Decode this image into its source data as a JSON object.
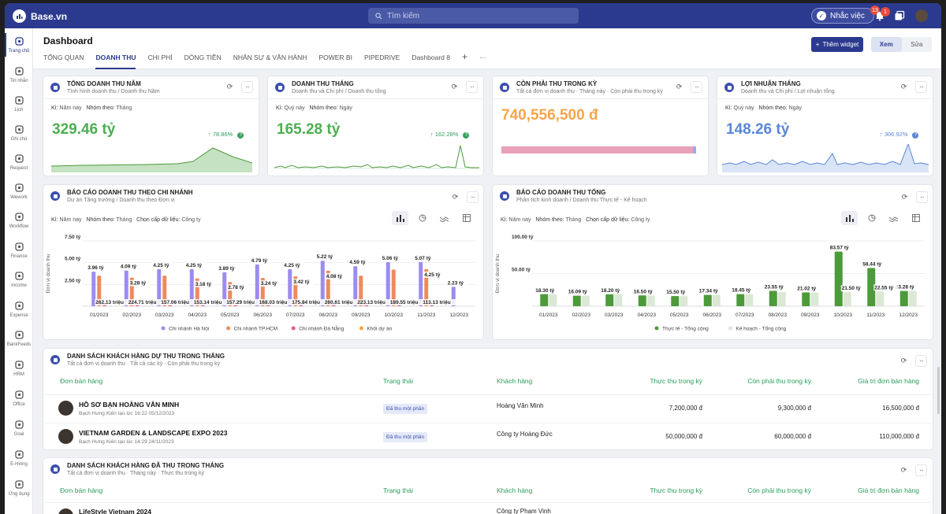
{
  "app": {
    "name": "Base.vn"
  },
  "topbar": {
    "search_placeholder": "Tìm kiếm",
    "remind_label": "Nhắc việc",
    "remind_badge": "13",
    "notif_badge": "1"
  },
  "sidebar": {
    "items": [
      {
        "label": "Trang chủ",
        "icon": "home-icon"
      },
      {
        "label": "Tin nhắn",
        "icon": "chat-icon"
      },
      {
        "label": "Lịch",
        "icon": "calendar-icon"
      },
      {
        "label": "Ghi chú",
        "icon": "note-icon"
      },
      {
        "label": "Request",
        "icon": "request-icon"
      },
      {
        "label": "Wework",
        "icon": "wework-icon"
      },
      {
        "label": "Workflow",
        "icon": "workflow-icon"
      },
      {
        "label": "Finance",
        "icon": "finance-icon"
      },
      {
        "label": "Income",
        "icon": "income-icon"
      },
      {
        "label": "Expense",
        "icon": "expense-icon"
      },
      {
        "label": "BankFeeds",
        "icon": "bankfeeds-icon"
      },
      {
        "label": "HRM",
        "icon": "hrm-icon"
      },
      {
        "label": "Office",
        "icon": "office-icon"
      },
      {
        "label": "Goal",
        "icon": "goal-icon"
      },
      {
        "label": "E-Hiring",
        "icon": "ehiring-icon"
      },
      {
        "label": "Ứng dụng",
        "icon": "apps-icon"
      }
    ]
  },
  "header": {
    "title": "Dashboard",
    "tabs": [
      "TỔNG QUAN",
      "DOANH THU",
      "CHI PHÍ",
      "DÒNG TIỀN",
      "NHÂN SỰ & VẬN HÀNH",
      "POWER BI",
      "PIPEDRIVE",
      "Dashboard 8"
    ],
    "add_tab": "+",
    "more": "···",
    "add_widget": "Thêm widget",
    "view_label": "Xem",
    "edit_label": "Sửa"
  },
  "kpis": [
    {
      "title": "TỔNG DOANH THU NĂM",
      "subtitle": "Tình hình doanh thu / Doanh thu Năm",
      "period_label": "Kì:",
      "period": "Năm nay",
      "group_label": "Nhóm theo:",
      "group": "Tháng",
      "value": "329.46 tỷ",
      "growth": "78.86%",
      "color": "#4caf50"
    },
    {
      "title": "DOANH THU THÁNG",
      "subtitle": "Doanh thu và Chi phí / Doanh thu tổng",
      "period_label": "Kì:",
      "period": "Quý này",
      "group_label": "Nhóm theo:",
      "group": "Ngày",
      "value": "165.28 tỷ",
      "growth": "162.28%",
      "color": "#4caf50"
    },
    {
      "title": "CÒN PHẢI THU TRONG KỲ",
      "subtitle": "Tất cả đơn vị doanh thu · Tháng này · Còn phải thu trong kỳ",
      "value": "740,556,500 đ",
      "progress": 0.985,
      "color": "#f5a54a"
    },
    {
      "title": "LỢI NHUẬN THÁNG",
      "subtitle": "Doanh thu và Chi phí / Lợi nhuận tổng",
      "period_label": "Kì:",
      "period": "Quý này",
      "group_label": "Nhóm theo:",
      "group": "Ngày",
      "value": "148.26 tỷ",
      "growth": "306.92%",
      "color": "#5a86d6"
    }
  ],
  "branch_report": {
    "title": "BÁO CÁO DOANH THU THEO CHI NHÁNH",
    "subtitle": "Dự án Tăng trưởng / Doanh thu theo Đơn vị",
    "period_label": "Kì:",
    "period": "Năm nay",
    "group_label": "Nhóm theo:",
    "group": "Tháng",
    "level_label": "Chọn cấp dữ liệu:",
    "level": "Công ty"
  },
  "total_report": {
    "title": "BÁO CÁO DOANH THU TỔNG",
    "subtitle": "Phân tích kinh doanh / Doanh thu Thực tế - Kế hoạch",
    "period_label": "Kì:",
    "period": "Năm nay",
    "group_label": "Nhóm theo:",
    "group": "Tháng",
    "level_label": "Chọn cấp dữ liệu:",
    "level": "Công ty"
  },
  "chart_data": [
    {
      "type": "bar",
      "ylabel": "Đơn vị doanh thu",
      "ylim": [
        0,
        7.5
      ],
      "yticks": [
        "7.50 tỷ",
        "5.00 tỷ",
        "2.50 tỷ"
      ],
      "ytick_values": [
        7.5,
        5.0,
        2.5
      ],
      "categories": [
        "01/2023",
        "02/2023",
        "03/2023",
        "04/2023",
        "05/2023",
        "06/2023",
        "07/2023",
        "08/2023",
        "09/2023",
        "10/2023",
        "11/2023",
        "12/2023"
      ],
      "series": [
        {
          "name": "Chi nhánh Hà Nội",
          "color": "#9b8cf0",
          "values": [
            3.96,
            4.09,
            4.25,
            4.25,
            3.89,
            4.79,
            4.25,
            5.22,
            4.59,
            5.06,
            5.07,
            2.23
          ],
          "labels": [
            "3.96 tỷ",
            "4.09 tỷ",
            "4.25 tỷ",
            "4.25 tỷ",
            "3.89 tỷ",
            "4.79 tỷ",
            "4.25 tỷ",
            "5.22 tỷ",
            "4.59 tỷ",
            "5.06 tỷ",
            "5.07 tỷ",
            "2.23 tỷ"
          ]
        },
        {
          "name": "Chi nhánh TP.HCM",
          "color": "#ef8a5c",
          "values": [
            3.5,
            3.28,
            3.5,
            3.18,
            2.78,
            3.24,
            3.42,
            4.08,
            3.5,
            4.2,
            4.25,
            0
          ],
          "labels": [
            "",
            "3.28 tỷ",
            "",
            "3.18 tỷ",
            "2.78 tỷ",
            "3.24 tỷ",
            "3.42 tỷ",
            "4.08 tỷ",
            "",
            "",
            "4.25 tỷ",
            ""
          ]
        },
        {
          "name": "Chi nhánh Đà Nẵng",
          "color": "#e0607e",
          "values": [
            0.26,
            0.22,
            0.16,
            0.15,
            0.16,
            0.17,
            0.18,
            0.26,
            0.22,
            0.19,
            0.11,
            0
          ],
          "labels": [
            "262.13 triệu",
            "224.71 triệu",
            "157.06 triệu",
            "153.14 triệu",
            "157.29 triệu",
            "168.03 triệu",
            "175.84 triệu",
            "260.61 triệu",
            "223.13 triệu",
            "189.55 triệu",
            "113.13 triệu",
            ""
          ]
        },
        {
          "name": "Khối dự án",
          "color": "#f0a640",
          "values": [
            0,
            0,
            0,
            0,
            0,
            0,
            0,
            0,
            0,
            0,
            0,
            0
          ]
        }
      ]
    },
    {
      "type": "bar",
      "ylabel": "Đơn vị doanh thu",
      "ylim": [
        0,
        100
      ],
      "yticks": [
        "100.00 tỷ",
        "50.00 tỷ"
      ],
      "ytick_values": [
        100,
        50
      ],
      "categories": [
        "01/2023",
        "02/2023",
        "03/2023",
        "04/2023",
        "05/2023",
        "06/2023",
        "07/2023",
        "08/2023",
        "09/2023",
        "10/2023",
        "11/2023",
        "12/2023"
      ],
      "series": [
        {
          "name": "Thực tế - Tổng cộng",
          "color": "#4c9a3a",
          "values": [
            18.3,
            16.09,
            18.2,
            16.5,
            15.5,
            17.34,
            18.45,
            23.55,
            21.02,
            83.57,
            58.44,
            23.28
          ],
          "labels": [
            "18.30 tỷ",
            "16.09 tỷ",
            "18.20 tỷ",
            "16.50 tỷ",
            "15.50 tỷ",
            "17.34 tỷ",
            "18.45 tỷ",
            "23.55 tỷ",
            "21.02 tỷ",
            "83.57 tỷ",
            "58.44 tỷ",
            "23.28 tỷ"
          ]
        },
        {
          "name": "Kế hoạch - Tổng cộng",
          "color": "#dbe8d5",
          "values": [
            18.3,
            16.09,
            18.2,
            16.5,
            15.5,
            17.34,
            18.45,
            21.5,
            21.02,
            21.5,
            22.55,
            23.28
          ],
          "labels": [
            "",
            "",
            "",
            "",
            "",
            "",
            "",
            "",
            "",
            "21.50 tỷ",
            "22.55 tỷ",
            ""
          ]
        }
      ]
    }
  ],
  "due_list": {
    "title": "DANH SÁCH KHÁCH HÀNG DỰ THU TRONG THÁNG",
    "subtitle": "Tất cả đơn vị doanh thu · Tất cả các kỳ · Còn phải thu trong kỳ",
    "columns": [
      "Đơn bán hàng",
      "Trạng thái",
      "Khách hàng",
      "Thực thu trong kỳ",
      "Còn phải thu trong kỳ",
      "Giá trị đơn bán hàng"
    ],
    "rows": [
      {
        "name": "HỒ SƠ BẠN HOÀNG VĂN MINH",
        "meta": "Bạch Hưng Kiên tạo lúc 16:22 05/12/2023",
        "status": "Đã thu một phần",
        "customer": "Hoàng Văn Minh",
        "collected": "7,200,000 đ",
        "remaining": "9,300,000 đ",
        "value": "16,500,000 đ"
      },
      {
        "name": "VIETNAM GARDEN & LANDSCAPE EXPO 2023",
        "meta": "Bạch Hưng Kiên tạo lúc 14:29 24/11/2023",
        "status": "Đã thu một phần",
        "customer": "Công ty Hoàng Đức",
        "collected": "50,000,000 đ",
        "remaining": "60,000,000 đ",
        "value": "110,000,000 đ"
      }
    ]
  },
  "paid_list": {
    "title": "DANH SÁCH KHÁCH HÀNG ĐÃ THU TRONG THÁNG",
    "subtitle": "Tất cả đơn vị doanh thu · Tháng này · Thực thu trong kỳ",
    "columns": [
      "Đơn bán hàng",
      "Trạng thái",
      "Khách hàng",
      "Thực thu trong kỳ",
      "Còn phải thu trong kỳ",
      "Giá trị đơn bán hàng"
    ],
    "rows": [
      {
        "name": "LifeStyle Vietnam 2024",
        "customer": "Công ty Phạm Vinh"
      }
    ]
  }
}
